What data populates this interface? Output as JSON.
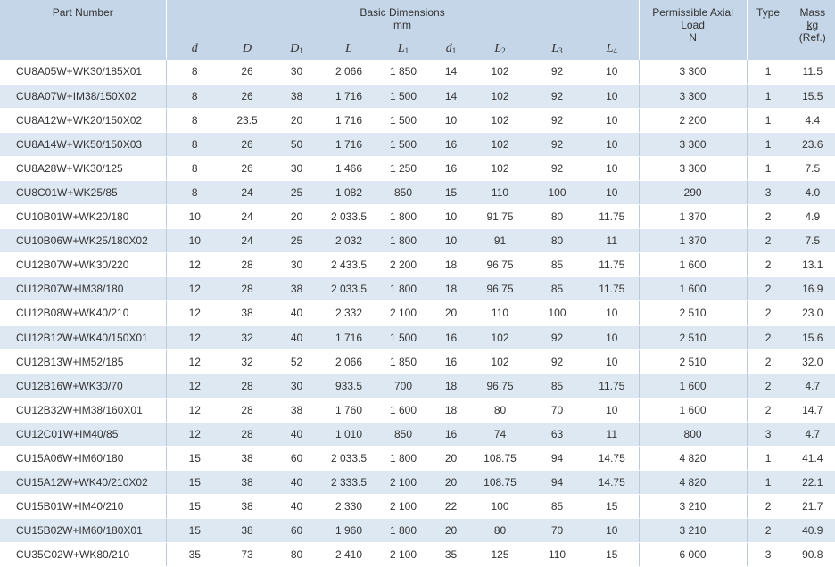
{
  "headers": {
    "part_number": "Part Number",
    "basic_dimensions": "Basic Dimensions",
    "basic_dimensions_unit": "mm",
    "axial_load": "Permissible Axial Load",
    "axial_load_unit": "N",
    "type": "Type",
    "mass": "Mass",
    "mass_unit": "kg",
    "mass_ref": "(Ref.)",
    "dims": [
      {
        "sym": "d",
        "sub": ""
      },
      {
        "sym": "D",
        "sub": ""
      },
      {
        "sym": "D",
        "sub": "1"
      },
      {
        "sym": "L",
        "sub": ""
      },
      {
        "sym": "L",
        "sub": "1"
      },
      {
        "sym": "d",
        "sub": "1"
      },
      {
        "sym": "L",
        "sub": "2"
      },
      {
        "sym": "L",
        "sub": "3"
      },
      {
        "sym": "L",
        "sub": "4"
      }
    ]
  },
  "rows": [
    [
      "CU8A05W+WK30/185X01",
      "8",
      "26",
      "30",
      "2 066",
      "1 850",
      "14",
      "102",
      "92",
      "10",
      "3 300",
      "1",
      "11.5"
    ],
    [
      "CU8A07W+IM38/150X02",
      "8",
      "26",
      "38",
      "1 716",
      "1 500",
      "14",
      "102",
      "92",
      "10",
      "3 300",
      "1",
      "15.5"
    ],
    [
      "CU8A12W+WK20/150X02",
      "8",
      "23.5",
      "20",
      "1 716",
      "1 500",
      "10",
      "102",
      "92",
      "10",
      "2 200",
      "1",
      "4.4"
    ],
    [
      "CU8A14W+WK50/150X03",
      "8",
      "26",
      "50",
      "1 716",
      "1 500",
      "16",
      "102",
      "92",
      "10",
      "3 300",
      "1",
      "23.6"
    ],
    [
      "CU8A28W+WK30/125",
      "8",
      "26",
      "30",
      "1 466",
      "1 250",
      "16",
      "102",
      "92",
      "10",
      "3 300",
      "1",
      "7.5"
    ],
    [
      "CU8C01W+WK25/85",
      "8",
      "24",
      "25",
      "1 082",
      "850",
      "15",
      "110",
      "100",
      "10",
      "290",
      "3",
      "4.0"
    ],
    [
      "CU10B01W+WK20/180",
      "10",
      "24",
      "20",
      "2 033.5",
      "1 800",
      "10",
      "91.75",
      "80",
      "11.75",
      "1 370",
      "2",
      "4.9"
    ],
    [
      "CU10B06W+WK25/180X02",
      "10",
      "24",
      "25",
      "2 032",
      "1 800",
      "10",
      "91",
      "80",
      "11",
      "1 370",
      "2",
      "7.5"
    ],
    [
      "CU12B07W+WK30/220",
      "12",
      "28",
      "30",
      "2 433.5",
      "2 200",
      "18",
      "96.75",
      "85",
      "11.75",
      "1 600",
      "2",
      "13.1"
    ],
    [
      "CU12B07W+IM38/180",
      "12",
      "28",
      "38",
      "2 033.5",
      "1 800",
      "18",
      "96.75",
      "85",
      "11.75",
      "1 600",
      "2",
      "16.9"
    ],
    [
      "CU12B08W+WK40/210",
      "12",
      "38",
      "40",
      "2 332",
      "2 100",
      "20",
      "110",
      "100",
      "10",
      "2 510",
      "2",
      "23.0"
    ],
    [
      "CU12B12W+WK40/150X01",
      "12",
      "32",
      "40",
      "1 716",
      "1 500",
      "16",
      "102",
      "92",
      "10",
      "2 510",
      "2",
      "15.6"
    ],
    [
      "CU12B13W+IM52/185",
      "12",
      "32",
      "52",
      "2 066",
      "1 850",
      "16",
      "102",
      "92",
      "10",
      "2 510",
      "2",
      "32.0"
    ],
    [
      "CU12B16W+WK30/70",
      "12",
      "28",
      "30",
      "933.5",
      "700",
      "18",
      "96.75",
      "85",
      "11.75",
      "1 600",
      "2",
      "4.7"
    ],
    [
      "CU12B32W+IM38/160X01",
      "12",
      "28",
      "38",
      "1 760",
      "1 600",
      "18",
      "80",
      "70",
      "10",
      "1 600",
      "2",
      "14.7"
    ],
    [
      "CU12C01W+IM40/85",
      "12",
      "28",
      "40",
      "1 010",
      "850",
      "16",
      "74",
      "63",
      "11",
      "800",
      "3",
      "4.7"
    ],
    [
      "CU15A06W+IM60/180",
      "15",
      "38",
      "60",
      "2 033.5",
      "1 800",
      "20",
      "108.75",
      "94",
      "14.75",
      "4 820",
      "1",
      "41.4"
    ],
    [
      "CU15A12W+WK40/210X02",
      "15",
      "38",
      "40",
      "2 333.5",
      "2 100",
      "20",
      "108.75",
      "94",
      "14.75",
      "4 820",
      "1",
      "22.1"
    ],
    [
      "CU15B01W+IM40/210",
      "15",
      "38",
      "40",
      "2 330",
      "2 100",
      "22",
      "100",
      "85",
      "15",
      "3 210",
      "2",
      "21.7"
    ],
    [
      "CU15B02W+IM60/180X01",
      "15",
      "38",
      "60",
      "1 960",
      "1 800",
      "20",
      "80",
      "70",
      "10",
      "3 210",
      "2",
      "40.9"
    ],
    [
      "CU35C02W+WK80/210",
      "35",
      "73",
      "80",
      "2 410",
      "2 100",
      "35",
      "125",
      "110",
      "15",
      "6 000",
      "3",
      "90.8"
    ]
  ]
}
